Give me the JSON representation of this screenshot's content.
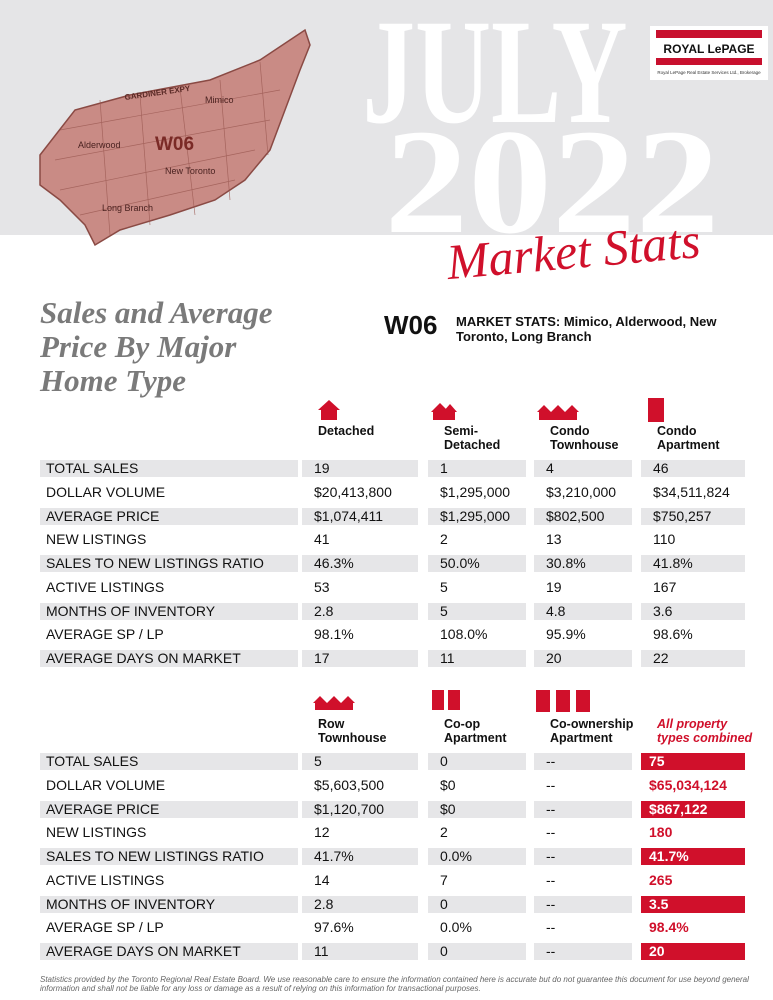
{
  "header": {
    "month": "JULY",
    "year": "2022",
    "script_title": "Market Stats",
    "logo": {
      "brand": "ROYAL LePAGE",
      "tagline": "Royal LePage Real Estate Services Ltd., Brokerage"
    }
  },
  "map": {
    "road": "GARDINER EXPY",
    "district": "W06",
    "areas": [
      "Mimico",
      "Alderwood",
      "New Toronto",
      "Long Branch"
    ]
  },
  "section_title": "Sales and Average Price By Major Home Type",
  "district": {
    "code": "W06",
    "label": "MARKET STATS: Mimico, Alderwood, New Toronto, Long Branch"
  },
  "table1": {
    "columns": [
      "Detached",
      "Semi-Detached",
      "Condo Townhouse",
      "Condo Apartment"
    ],
    "rows": [
      {
        "label": "TOTAL SALES",
        "cells": [
          "19",
          "1",
          "4",
          "46"
        ]
      },
      {
        "label": "DOLLAR VOLUME",
        "cells": [
          "$20,413,800",
          "$1,295,000",
          "$3,210,000",
          "$34,511,824"
        ]
      },
      {
        "label": "AVERAGE PRICE",
        "cells": [
          "$1,074,411",
          "$1,295,000",
          "$802,500",
          "$750,257"
        ]
      },
      {
        "label": "NEW LISTINGS",
        "cells": [
          "41",
          "2",
          "13",
          "110"
        ]
      },
      {
        "label": "SALES TO NEW LISTINGS RATIO",
        "cells": [
          "46.3%",
          "50.0%",
          "30.8%",
          "41.8%"
        ]
      },
      {
        "label": "ACTIVE LISTINGS",
        "cells": [
          "53",
          "5",
          "19",
          "167"
        ]
      },
      {
        "label": "MONTHS OF INVENTORY",
        "cells": [
          "2.8",
          "5",
          "4.8",
          "3.6"
        ]
      },
      {
        "label": "AVERAGE SP / LP",
        "cells": [
          "98.1%",
          "108.0%",
          "95.9%",
          "98.6%"
        ]
      },
      {
        "label": "AVERAGE DAYS ON MARKET",
        "cells": [
          "17",
          "11",
          "20",
          "22"
        ]
      }
    ]
  },
  "table2": {
    "columns": [
      "Row Townhouse",
      "Co-op Apartment",
      "Co-ownership Apartment",
      "All property types combined"
    ],
    "rows": [
      {
        "label": "TOTAL SALES",
        "cells": [
          "5",
          "0",
          "--",
          "75"
        ]
      },
      {
        "label": "DOLLAR VOLUME",
        "cells": [
          "$5,603,500",
          "$0",
          "--",
          "$65,034,124"
        ]
      },
      {
        "label": "AVERAGE PRICE",
        "cells": [
          "$1,120,700",
          "$0",
          "--",
          "$867,122"
        ]
      },
      {
        "label": "NEW LISTINGS",
        "cells": [
          "12",
          "2",
          "--",
          "180"
        ]
      },
      {
        "label": "SALES TO NEW LISTINGS RATIO",
        "cells": [
          "41.7%",
          "0.0%",
          "--",
          "41.7%"
        ]
      },
      {
        "label": "ACTIVE LISTINGS",
        "cells": [
          "14",
          "7",
          "--",
          "265"
        ]
      },
      {
        "label": "MONTHS OF INVENTORY",
        "cells": [
          "2.8",
          "0",
          "--",
          "3.5"
        ]
      },
      {
        "label": "AVERAGE SP / LP",
        "cells": [
          "97.6%",
          "0.0%",
          "--",
          "98.4%"
        ]
      },
      {
        "label": "AVERAGE DAYS ON MARKET",
        "cells": [
          "11",
          "0",
          "--",
          "20"
        ]
      }
    ]
  },
  "footnote": "Statistics provided by the Toronto Regional Real Estate Board. We use reasonable care to ensure the information contained here is accurate but do not guarantee this document for use beyond general information and shall not be liable for any loss or damage as a result of relying on this information for transactional purposes."
}
